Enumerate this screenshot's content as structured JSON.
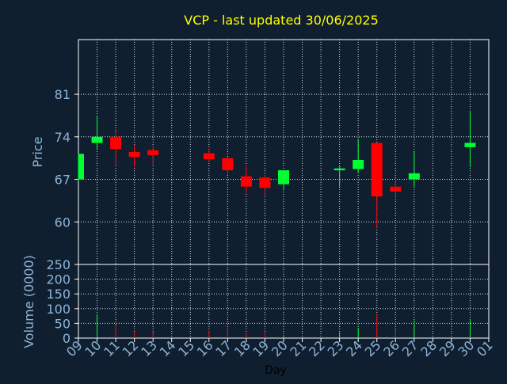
{
  "chart_data": {
    "type": "candlestick",
    "title": "VCP - last updated 30/06/2025",
    "price_panel": {
      "ylabel": "Price",
      "ylim": [
        53,
        90
      ],
      "yticks": [
        60,
        67,
        74,
        81
      ]
    },
    "volume_panel": {
      "ylabel": "Volume (0000)",
      "ylim": [
        0,
        250
      ],
      "yticks": [
        0,
        50,
        100,
        150,
        200,
        250
      ]
    },
    "xlabel": "Day",
    "x_ticks": [
      "09",
      "10",
      "11",
      "12",
      "13",
      "14",
      "15",
      "16",
      "17",
      "18",
      "19",
      "20",
      "21",
      "22",
      "23",
      "24",
      "25",
      "26",
      "27",
      "28",
      "29",
      "30",
      "01"
    ],
    "colors": {
      "up": "#00ff33",
      "down": "#ff0000",
      "grid": "#ffffff",
      "tick_text": "#8fb4d8",
      "title": "#ffff00",
      "background": "#0f1f30"
    },
    "candles": [
      {
        "day": "09",
        "open": 67.0,
        "close": 71.2,
        "high": 71.2,
        "low": 66.8,
        "volume": 0
      },
      {
        "day": "10",
        "open": 73.0,
        "close": 74.0,
        "high": 77.5,
        "low": 72.0,
        "volume": 80
      },
      {
        "day": "11",
        "open": 74.0,
        "close": 72.0,
        "high": 75.0,
        "low": 69.5,
        "volume": 45
      },
      {
        "day": "12",
        "open": 71.5,
        "close": 70.7,
        "high": 72.7,
        "low": 69.0,
        "volume": 20
      },
      {
        "day": "13",
        "open": 71.8,
        "close": 71.0,
        "high": 72.4,
        "low": 69.5,
        "volume": 22
      },
      {
        "day": "16",
        "open": 71.3,
        "close": 70.3,
        "high": 72.1,
        "low": 70.0,
        "volume": 25
      },
      {
        "day": "17",
        "open": 70.5,
        "close": 68.5,
        "high": 70.7,
        "low": 67.8,
        "volume": 35
      },
      {
        "day": "18",
        "open": 67.5,
        "close": 65.8,
        "high": 69.3,
        "low": 64.8,
        "volume": 15
      },
      {
        "day": "19",
        "open": 67.3,
        "close": 65.6,
        "high": 67.8,
        "low": 64.5,
        "volume": 20
      },
      {
        "day": "20",
        "open": 66.2,
        "close": 68.5,
        "high": 68.5,
        "low": 65.2,
        "volume": 10
      },
      {
        "day": "23",
        "open": 68.5,
        "close": 68.8,
        "high": 69.3,
        "low": 65.8,
        "volume": 20
      },
      {
        "day": "24",
        "open": 68.7,
        "close": 70.2,
        "high": 73.5,
        "low": 68.0,
        "volume": 35
      },
      {
        "day": "25",
        "open": 73.0,
        "close": 64.2,
        "high": 73.0,
        "low": 59.0,
        "volume": 80
      },
      {
        "day": "26",
        "open": 65.8,
        "close": 65.0,
        "high": 67.2,
        "low": 64.5,
        "volume": 30
      },
      {
        "day": "27",
        "open": 67.0,
        "close": 68.0,
        "high": 71.5,
        "low": 65.8,
        "volume": 60
      },
      {
        "day": "30",
        "open": 72.3,
        "close": 73.0,
        "high": 78.3,
        "low": 69.0,
        "volume": 65
      }
    ]
  }
}
